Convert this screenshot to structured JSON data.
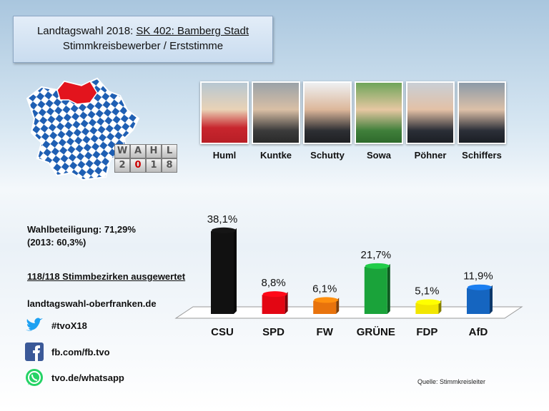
{
  "header": {
    "title_prefix": "Landtagswahl 2018:",
    "title_district": "SK 402: Bamberg Stadt",
    "subtitle": "Stimmkreisbewerber  / Erststimme"
  },
  "logo": {
    "top": [
      "W",
      "A",
      "H",
      "L"
    ],
    "bottom": [
      "2",
      "0",
      "1",
      "8"
    ]
  },
  "candidates": [
    {
      "name": "Huml"
    },
    {
      "name": "Kuntke"
    },
    {
      "name": "Schutty"
    },
    {
      "name": "Sowa"
    },
    {
      "name": "Pöhner"
    },
    {
      "name": "Schiffers"
    }
  ],
  "info": {
    "turnout": "Wahlbeteiligung: 71,29%",
    "turnout_prev": "(2013: 60,3%)",
    "counted": "118/118 Stimmbezirken ausgewertet",
    "website": "landtagswahl-oberfranken.de"
  },
  "social": {
    "twitter": "#tvoX18",
    "facebook": "fb.com/fb.tvo",
    "whatsapp": "tvo.de/whatsapp"
  },
  "source": "Quelle: Stimmkreisleiter",
  "chart_data": {
    "type": "bar",
    "categories": [
      "CSU",
      "SPD",
      "FW",
      "GRÜNE",
      "FDP",
      "AfD"
    ],
    "values": [
      38.1,
      8.8,
      6.1,
      21.7,
      5.1,
      11.9
    ],
    "value_labels": [
      "38,1%",
      "8,8%",
      "6,1%",
      "21,7%",
      "5,1%",
      "11,9%"
    ],
    "colors": [
      "#111111",
      "#e30613",
      "#e8730c",
      "#1aa33a",
      "#f2e600",
      "#1565c0"
    ],
    "ylim": [
      0,
      40
    ],
    "grid": false,
    "legend": "none"
  }
}
